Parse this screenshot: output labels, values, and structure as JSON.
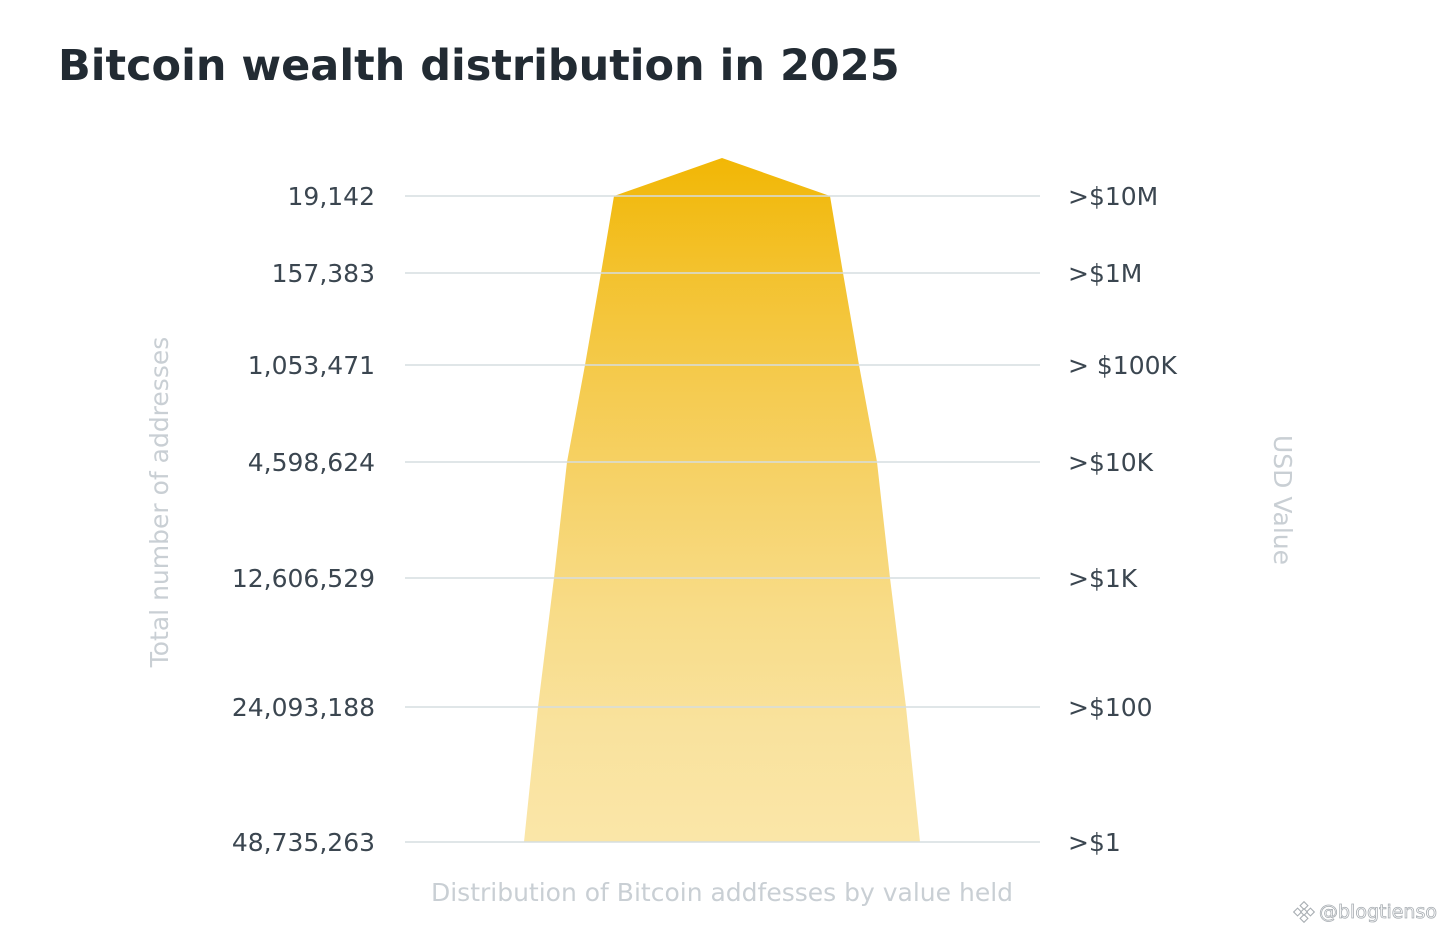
{
  "chart_data": {
    "type": "funnel",
    "title": "Bitcoin wealth distribution in 2025",
    "xlabel": "Distribution of Bitcoin addfesses by value held",
    "ylabel_left": "Total number of addresses",
    "ylabel_right": "USD Value",
    "categories": [
      ">$10M",
      ">$1M",
      "> $100K",
      ">$10K",
      ">$1K",
      ">$100",
      ">$1"
    ],
    "values": [
      19142,
      157383,
      1053471,
      4598624,
      12606529,
      24093188,
      48735263
    ],
    "value_labels": [
      "19,142",
      "157,383",
      "1,053,471",
      "4,598,624",
      "12,606,529",
      "24,093,188",
      "48,735,263"
    ],
    "colors": [
      "#f2b705",
      "#f3c22e",
      "#f5cb4f",
      "#f6d36c",
      "#f8dc88",
      "#f9e29d",
      "#fae6a8"
    ],
    "grid": true
  },
  "watermark": {
    "text": "@blogtienso",
    "icon": "binance-logo-icon"
  }
}
